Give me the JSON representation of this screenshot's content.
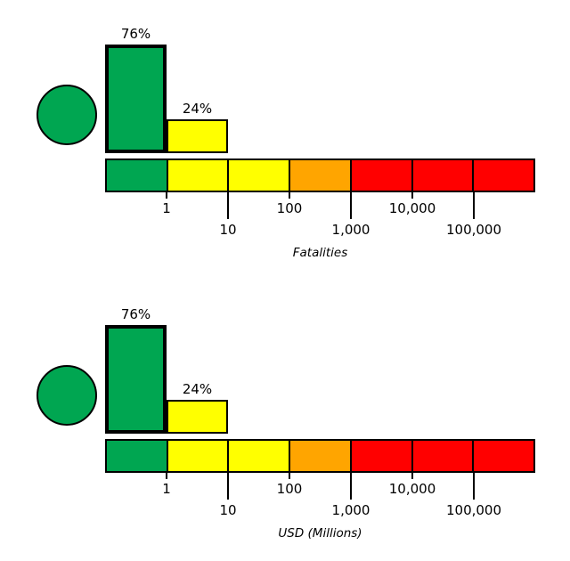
{
  "colors": {
    "green": "#00A651",
    "yellow": "#FFFF00",
    "orange": "#FFA500",
    "red": "#FF0000",
    "background": "#FFFFFF"
  },
  "chart_data": [
    {
      "type": "bar",
      "xlabel": "Fatalities",
      "x_scale": "log",
      "x_ticks": [
        "1",
        "10",
        "100",
        "1,000",
        "10,000",
        "100,000"
      ],
      "bars": [
        {
          "label": "76%",
          "value_percent": 76,
          "color": "#00A651",
          "highlighted": true
        },
        {
          "label": "24%",
          "value_percent": 24,
          "color": "#FFFF00",
          "highlighted": false
        }
      ],
      "severity_scale_colors": [
        "#00A651",
        "#FFFF00",
        "#FFFF00",
        "#FFA500",
        "#FF0000",
        "#FF0000",
        "#FF0000"
      ],
      "indicator": {
        "shape": "circle",
        "color": "#00A651"
      }
    },
    {
      "type": "bar",
      "xlabel": "USD (Millions)",
      "x_scale": "log",
      "x_ticks": [
        "1",
        "10",
        "100",
        "1,000",
        "10,000",
        "100,000"
      ],
      "bars": [
        {
          "label": "76%",
          "value_percent": 76,
          "color": "#00A651",
          "highlighted": true
        },
        {
          "label": "24%",
          "value_percent": 24,
          "color": "#FFFF00",
          "highlighted": false
        }
      ],
      "severity_scale_colors": [
        "#00A651",
        "#FFFF00",
        "#FFFF00",
        "#FFA500",
        "#FF0000",
        "#FF0000",
        "#FF0000"
      ],
      "indicator": {
        "shape": "circle",
        "color": "#00A651"
      }
    }
  ]
}
